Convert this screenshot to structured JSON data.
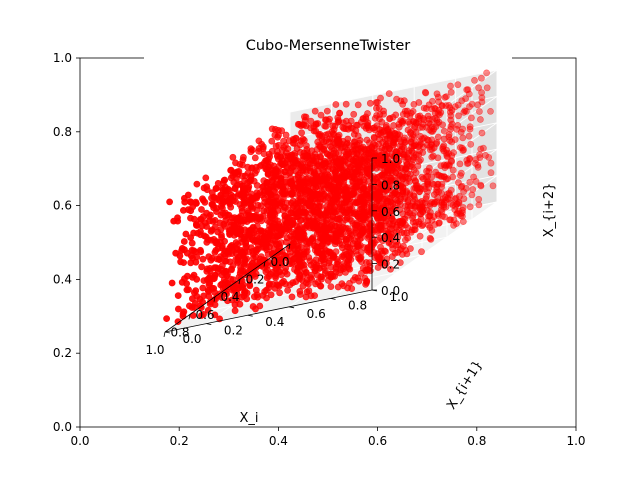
{
  "chart_data": {
    "type": "scatter",
    "title": "Cubo-MersenneTwister",
    "outer_axes": {
      "xlim": [
        0,
        1
      ],
      "ylim": [
        0,
        1
      ],
      "xticks": [
        "0.0",
        "0.2",
        "0.4",
        "0.6",
        "0.8",
        "1.0"
      ],
      "yticks": [
        "0.0",
        "0.2",
        "0.4",
        "0.6",
        "0.8",
        "1.0"
      ]
    },
    "axes3d": {
      "xlabel": "X_i",
      "ylabel": "X_{i+1}",
      "zlabel": "X_{i+2}",
      "xticks": [
        "0.0",
        "0.2",
        "0.4",
        "0.6",
        "0.8",
        "1.0"
      ],
      "yticks": [
        "0.0",
        "0.2",
        "0.4",
        "0.6",
        "0.8",
        "1.0"
      ],
      "zticks": [
        "0.0",
        "0.2",
        "0.4",
        "0.6",
        "0.8",
        "1.0"
      ],
      "xlim": [
        0,
        1
      ],
      "ylim": [
        0,
        1
      ],
      "zlim": [
        0,
        1
      ],
      "grid": true
    },
    "series": [
      {
        "marker_color": "#ff0000",
        "distribution": "triples of consecutive uniform random numbers in the unit cube",
        "point_count": 3000
      }
    ]
  }
}
